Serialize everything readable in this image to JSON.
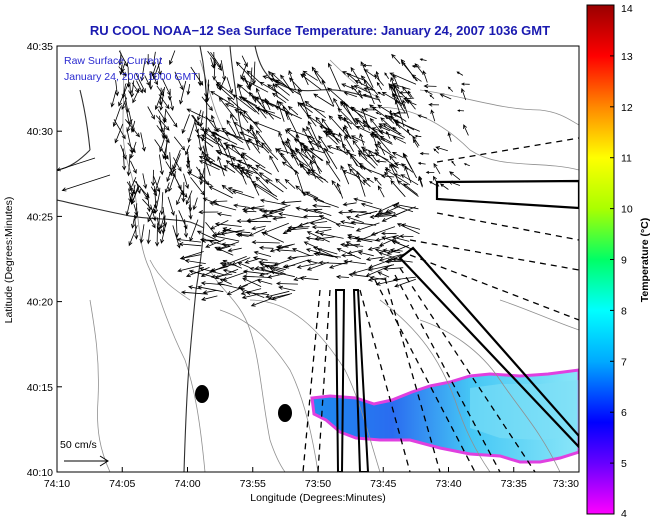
{
  "title": "RU COOL  NOAA−12  Sea Surface Temperature:  January 24, 2007 1036 GMT",
  "legend": {
    "line1": "Raw Surface Current",
    "line2": "January 24, 2007 1000 GMT"
  },
  "scale": {
    "label": "50 cm/s"
  },
  "axes": {
    "xlabel": "Longitude (Degrees:Minutes)",
    "ylabel": "Latitude (Degrees:Minutes)",
    "xticks": [
      "74:10",
      "74:05",
      "74:00",
      "73:55",
      "73:50",
      "73:45",
      "73:40",
      "73:35",
      "73:30"
    ],
    "yticks": [
      "40:35",
      "40:30",
      "40:25",
      "40:20",
      "40:15",
      "40:10"
    ]
  },
  "colorbar": {
    "label": "Temperature (°C)",
    "ticks": [
      "4",
      "5",
      "6",
      "7",
      "8",
      "9",
      "10",
      "11",
      "12",
      "13",
      "14"
    ],
    "range": [
      4,
      14
    ],
    "colors": [
      "#ff00ff",
      "#0000ff",
      "#00aaff",
      "#00ffff",
      "#00ff66",
      "#ffff00",
      "#ff8800",
      "#ff0000",
      "#990000"
    ]
  },
  "map": {
    "lon_range": [
      "74:10",
      "73:30"
    ],
    "lat_range": [
      "40:10",
      "40:35"
    ]
  }
}
